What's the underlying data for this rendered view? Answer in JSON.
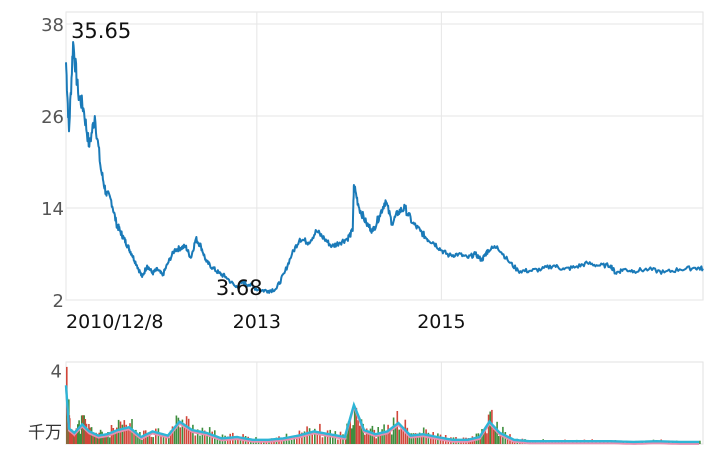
{
  "chart_data": [
    {
      "type": "line",
      "title": "",
      "xlabel": "",
      "ylabel": "",
      "ylim": [
        2,
        38
      ],
      "yticks": [
        "38",
        "26",
        "14",
        "2"
      ],
      "xticks": [
        {
          "label": "2010/12/8",
          "date": "2010-12-08"
        },
        {
          "label": "2013",
          "date": "2013-01-01"
        },
        {
          "label": "2015",
          "date": "2015-01-01"
        }
      ],
      "xlim": [
        "2010-12-08",
        "2017-11-01"
      ],
      "grid": true,
      "line_color": "#1a7ab8",
      "annotations": [
        {
          "label": "35.65",
          "date": "2011-01-05",
          "value": 35.65
        },
        {
          "label": "3.68",
          "date": "2012-10-10",
          "value": 3.68
        }
      ],
      "series": [
        {
          "x": [
            "2010-12-08",
            "2010-12-20",
            "2011-01-05",
            "2011-01-25",
            "2011-02-15",
            "2011-03-10",
            "2011-04-01",
            "2011-04-25",
            "2011-05-15",
            "2011-06-05",
            "2011-06-25",
            "2011-07-10",
            "2011-07-25",
            "2011-08-10",
            "2011-08-25",
            "2011-09-15",
            "2011-10-05",
            "2011-10-25",
            "2011-11-15",
            "2011-12-05",
            "2011-12-25",
            "2012-01-15",
            "2012-02-10",
            "2012-03-05",
            "2012-03-25",
            "2012-04-15",
            "2012-05-05",
            "2012-05-25",
            "2012-06-15",
            "2012-07-10",
            "2012-08-05",
            "2012-09-01",
            "2012-10-10",
            "2012-11-05",
            "2012-12-01",
            "2013-01-10",
            "2013-02-15",
            "2013-03-20",
            "2013-04-20",
            "2013-05-20",
            "2013-06-20",
            "2013-07-25",
            "2013-08-25",
            "2013-09-25",
            "2013-10-25",
            "2013-11-25",
            "2013-12-25",
            "2014-01-15",
            "2014-01-20",
            "2014-02-10",
            "2014-03-10",
            "2014-04-05",
            "2014-05-01",
            "2014-05-25",
            "2014-06-20",
            "2014-07-15",
            "2014-08-10",
            "2014-09-10",
            "2014-10-10",
            "2014-11-05",
            "2014-12-01",
            "2015-01-01",
            "2015-02-01",
            "2015-03-10",
            "2015-04-15",
            "2015-05-15",
            "2015-06-10",
            "2015-06-25",
            "2015-07-05",
            "2015-08-10",
            "2015-09-20",
            "2015-11-01",
            "2015-12-15",
            "2016-02-01",
            "2016-03-20",
            "2016-05-01",
            "2016-06-15",
            "2016-08-01",
            "2016-09-15",
            "2016-11-01",
            "2016-11-20",
            "2016-12-20",
            "2017-02-01",
            "2017-04-01",
            "2017-06-01",
            "2017-08-01",
            "2017-10-01",
            "2017-11-01"
          ],
          "values": [
            33,
            24,
            35.65,
            29,
            27,
            22,
            26,
            19,
            16,
            15,
            12,
            11,
            10,
            9,
            8,
            6.5,
            5,
            6.5,
            5.5,
            6,
            5.2,
            6.8,
            8.5,
            8.8,
            9,
            7.5,
            10,
            9,
            7,
            6.2,
            5.5,
            5,
            3.68,
            4.3,
            4,
            3.3,
            3.2,
            3.5,
            5.5,
            8,
            10,
            9.5,
            11,
            10,
            9,
            9.5,
            10,
            11,
            17,
            14,
            12,
            11,
            13,
            15,
            12,
            13.5,
            14,
            12,
            11,
            10,
            9.5,
            8.5,
            7.8,
            8,
            7.5,
            8,
            7.2,
            8,
            8.5,
            9,
            7.2,
            5.8,
            5.8,
            6,
            6.5,
            6,
            6.3,
            6.8,
            6.5,
            6.5,
            5.5,
            6,
            5.8,
            6,
            5.6,
            6,
            6.2,
            6.1
          ]
        }
      ]
    },
    {
      "type": "bar",
      "title": "",
      "xlabel": "",
      "ylabel": "千万",
      "ylim": [
        0,
        4.4
      ],
      "yticks": [
        "4"
      ],
      "grid": true,
      "colors": {
        "up": "#d1463a",
        "down": "#3e8e3e",
        "avg_pink": "#e58fb0",
        "avg_cyan": "#2eb5d6"
      },
      "series": [
        {
          "name": "volume",
          "x": [
            "2010-12-08",
            "2010-12-20",
            "2011-01-10",
            "2011-02-10",
            "2011-03-10",
            "2011-04-15",
            "2011-05-20",
            "2011-07-01",
            "2011-08-15",
            "2011-10-01",
            "2011-11-15",
            "2012-01-15",
            "2012-03-01",
            "2012-04-20",
            "2012-06-15",
            "2012-08-15",
            "2012-10-15",
            "2012-12-15",
            "2013-02-15",
            "2013-04-15",
            "2013-06-15",
            "2013-08-15",
            "2013-10-15",
            "2013-12-15",
            "2014-01-20",
            "2014-03-01",
            "2014-04-15",
            "2014-06-01",
            "2014-07-15",
            "2014-09-01",
            "2014-10-20",
            "2014-12-15",
            "2015-02-15",
            "2015-04-15",
            "2015-06-01",
            "2015-07-10",
            "2015-08-20",
            "2015-10-15",
            "2015-12-15",
            "2016-02-15",
            "2016-05-01",
            "2016-08-01",
            "2016-11-01",
            "2017-02-01",
            "2017-05-01",
            "2017-08-01",
            "2017-11-01"
          ],
          "values": [
            4.2,
            1.1,
            0.8,
            1.4,
            0.9,
            0.6,
            0.7,
            1.0,
            1.2,
            0.5,
            0.9,
            0.6,
            1.6,
            1.0,
            0.8,
            0.4,
            0.5,
            0.3,
            0.3,
            0.4,
            0.6,
            0.9,
            0.7,
            0.5,
            2.8,
            1.0,
            0.7,
            0.9,
            1.5,
            0.6,
            0.7,
            0.5,
            0.3,
            0.3,
            0.5,
            1.6,
            0.8,
            0.3,
            0.2,
            0.2,
            0.2,
            0.2,
            0.2,
            0.15,
            0.2,
            0.15,
            0.15
          ]
        }
      ]
    }
  ]
}
